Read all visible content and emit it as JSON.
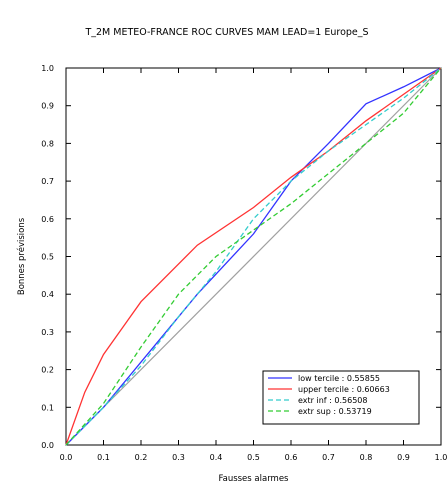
{
  "chart_data": {
    "type": "line",
    "title": "T_2M METEO-FRANCE ROC CURVES MAM LEAD=1  Europe_S",
    "xlabel": "Fausses alarmes",
    "ylabel": "Bonnes prévisions",
    "xlim": [
      0,
      1
    ],
    "ylim": [
      0,
      1
    ],
    "xticks": [
      "0.0",
      "0.1",
      "0.2",
      "0.3",
      "0.4",
      "0.5",
      "0.6",
      "0.7",
      "0.8",
      "0.9",
      "1.0"
    ],
    "yticks": [
      "0.0",
      "0.1",
      "0.2",
      "0.3",
      "0.4",
      "0.5",
      "0.6",
      "0.7",
      "0.8",
      "0.9",
      "1.0"
    ],
    "grid": false,
    "legend_position": "bottom-right",
    "diagonal": {
      "x": [
        0,
        1
      ],
      "y": [
        0,
        1
      ],
      "color": "#a0a0a0"
    },
    "series": [
      {
        "name": "low tercile : 0.55855",
        "color": "#3333ff",
        "dash": "solid",
        "x": [
          0,
          0.1,
          0.2,
          0.35,
          0.5,
          0.6,
          0.7,
          0.8,
          0.9,
          1.0
        ],
        "y": [
          0,
          0.1,
          0.22,
          0.4,
          0.56,
          0.7,
          0.8,
          0.905,
          0.95,
          1.0
        ]
      },
      {
        "name": "upper tercile : 0.60663",
        "color": "#ff3333",
        "dash": "solid",
        "x": [
          0,
          0.05,
          0.1,
          0.2,
          0.35,
          0.5,
          0.6,
          0.7,
          0.8,
          0.9,
          1.0
        ],
        "y": [
          0,
          0.14,
          0.24,
          0.38,
          0.53,
          0.63,
          0.71,
          0.78,
          0.86,
          0.93,
          1.0
        ]
      },
      {
        "name": "extr inf : 0.56508",
        "color": "#33cccc",
        "dash": "dashed",
        "x": [
          0,
          0.1,
          0.2,
          0.3,
          0.4,
          0.5,
          0.6,
          0.7,
          0.8,
          0.9,
          1.0
        ],
        "y": [
          0,
          0.1,
          0.21,
          0.34,
          0.46,
          0.6,
          0.7,
          0.78,
          0.85,
          0.92,
          1.0
        ]
      },
      {
        "name": "extr sup : 0.53719",
        "color": "#33cc33",
        "dash": "dashed",
        "x": [
          0,
          0.1,
          0.2,
          0.3,
          0.4,
          0.5,
          0.6,
          0.7,
          0.8,
          0.9,
          1.0
        ],
        "y": [
          0,
          0.11,
          0.26,
          0.4,
          0.5,
          0.57,
          0.64,
          0.72,
          0.8,
          0.88,
          1.0
        ]
      }
    ]
  }
}
